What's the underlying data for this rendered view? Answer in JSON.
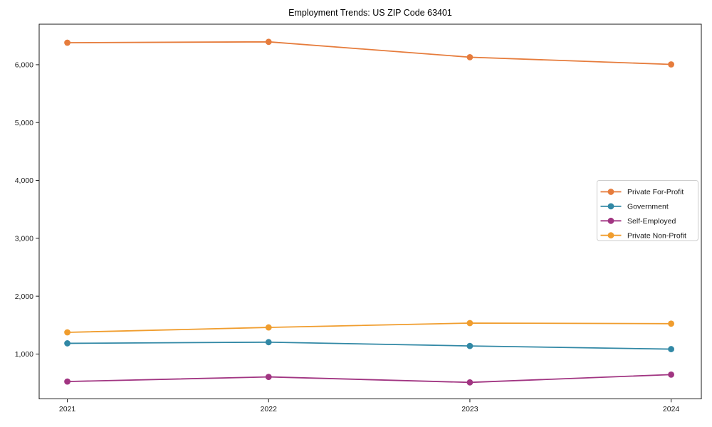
{
  "figure": {
    "background": "#ffffff",
    "axis_color": "#1a1a1a",
    "tick_label_color": "#1a1a1a",
    "legend_border_color": "#cccccc",
    "legend_background": "#ffffff"
  },
  "chart_data": {
    "type": "line",
    "title": "Employment Trends: US ZIP Code 63401",
    "xlabel": "",
    "ylabel": "",
    "x": [
      2021,
      2022,
      2023,
      2024
    ],
    "xtick_labels": [
      "2021",
      "2022",
      "2023",
      "2024"
    ],
    "series": [
      {
        "name": "Private For-Profit",
        "color": "#E67C3C",
        "values": [
          6380,
          6395,
          6130,
          6005
        ]
      },
      {
        "name": "Government",
        "color": "#3188A5",
        "values": [
          1185,
          1205,
          1140,
          1085
        ]
      },
      {
        "name": "Self-Employed",
        "color": "#A13582",
        "values": [
          525,
          605,
          510,
          645
        ]
      },
      {
        "name": "Private Non-Profit",
        "color": "#F09D2E",
        "values": [
          1375,
          1460,
          1535,
          1525
        ]
      }
    ],
    "xlim": [
      2020.86,
      2024.15
    ],
    "ylim": [
      225,
      6700
    ],
    "yticks": [
      1000,
      2000,
      3000,
      4000,
      5000,
      6000
    ],
    "ytick_labels": [
      "1,000",
      "2,000",
      "3,000",
      "4,000",
      "5,000",
      "6,000"
    ],
    "grid": false,
    "legend": {
      "position": "center-right",
      "entries": [
        "Private For-Profit",
        "Government",
        "Self-Employed",
        "Private Non-Profit"
      ]
    },
    "marker": "circle"
  }
}
